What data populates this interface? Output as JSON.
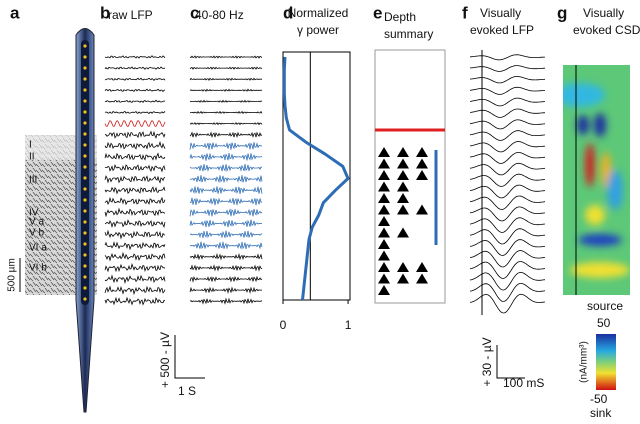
{
  "panel_labels": [
    "a",
    "b",
    "c",
    "d",
    "e",
    "f",
    "g"
  ],
  "raw_lfp": {
    "title": "raw LFP",
    "scale_v": "+ 500 - µV",
    "scale_t": "1 S"
  },
  "gamma": {
    "title": "40-80 Hz"
  },
  "depth": {
    "title": [
      "Depth",
      "summary"
    ]
  },
  "evoked_lfp": {
    "title": [
      "Visually",
      "evoked LFP"
    ],
    "scale_v": "+ 30 - µV",
    "scale_t": "100 mS"
  },
  "evoked_csd": {
    "title": [
      "Visually",
      "evoked CSD"
    ],
    "colorbar_unit": "(nA/mm³)",
    "max": "50",
    "min": "-50",
    "source": "source",
    "sink": "sink"
  },
  "histology": {
    "layers": [
      "I",
      "II",
      "III",
      "IV",
      "V a",
      "V b",
      "VI a",
      "VI b"
    ],
    "scale": "500 µm"
  },
  "chart_data": {
    "type": "line",
    "title": [
      "Normalized",
      "γ power"
    ],
    "values": [
      0.03,
      0.02,
      0.02,
      0.02,
      0.03,
      0.05,
      0.1,
      0.35,
      0.65,
      0.92,
      1.0,
      0.8,
      0.62,
      0.55,
      0.45,
      0.4,
      0.38,
      0.36,
      0.34,
      0.32,
      0.3
    ],
    "xlim": [
      0,
      1.03
    ],
    "xticks": [
      0,
      1
    ],
    "reference_line": 0.42,
    "color": "#2d6db5"
  }
}
